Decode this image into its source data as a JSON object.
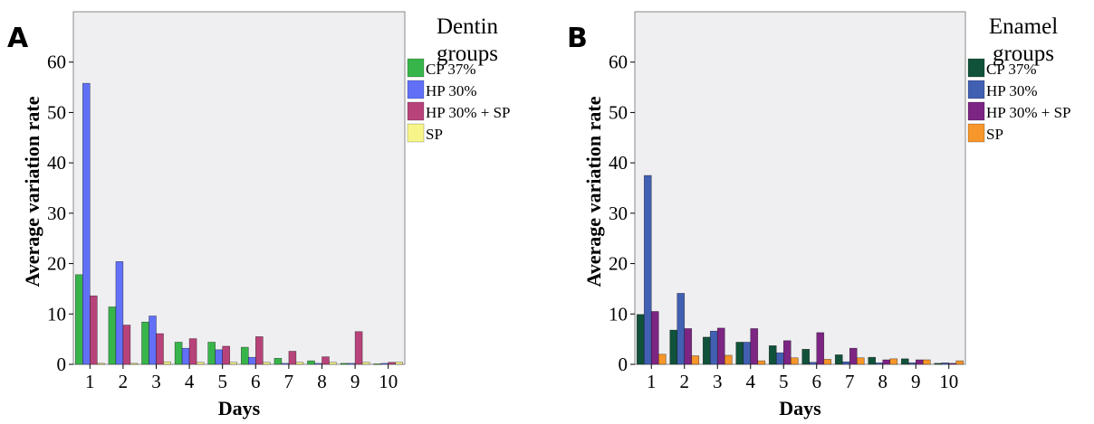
{
  "chart_data": [
    {
      "panel": "A",
      "type": "bar",
      "xlabel": "Days",
      "ylabel": "Average variation rate",
      "ylim": [
        0,
        70
      ],
      "yticks": [
        0,
        10,
        20,
        30,
        40,
        50,
        60
      ],
      "categories": [
        "1",
        "2",
        "3",
        "4",
        "5",
        "6",
        "7",
        "8",
        "9",
        "10"
      ],
      "legend_title": "Dentin groups",
      "legend_position": "right",
      "plot_background": "#efeff1",
      "series": [
        {
          "name": "CP 37%",
          "color": "#38b54a",
          "values": [
            17.8,
            11.4,
            8.4,
            4.4,
            4.4,
            3.4,
            1.2,
            0.7,
            0.2,
            0.1
          ]
        },
        {
          "name": "HP 30%",
          "color": "#6170f7",
          "values": [
            55.8,
            20.4,
            9.6,
            3.2,
            2.9,
            1.4,
            0.2,
            0.2,
            0.2,
            0.2
          ]
        },
        {
          "name": "HP 30% + SP",
          "color": "#b8437a",
          "values": [
            13.6,
            7.8,
            6.1,
            5.1,
            3.6,
            5.5,
            2.6,
            1.5,
            6.5,
            0.4
          ]
        },
        {
          "name": "SP",
          "color": "#f7f58a",
          "values": [
            0.2,
            0.2,
            0.5,
            0.4,
            0.4,
            0.4,
            0.4,
            0.4,
            0.4,
            0.4
          ]
        }
      ]
    },
    {
      "panel": "B",
      "type": "bar",
      "xlabel": "Days",
      "ylabel": "Average variation rate",
      "ylim": [
        0,
        70
      ],
      "yticks": [
        0,
        10,
        20,
        30,
        40,
        50,
        60
      ],
      "categories": [
        "1",
        "2",
        "3",
        "4",
        "5",
        "6",
        "7",
        "8",
        "9",
        "10"
      ],
      "legend_title": "Enamel groups",
      "legend_position": "right",
      "plot_background": "#efeff1",
      "series": [
        {
          "name": "CP 37%",
          "color": "#11523a",
          "values": [
            9.9,
            6.8,
            5.4,
            4.4,
            3.7,
            3.0,
            1.9,
            1.4,
            1.1,
            0.2
          ]
        },
        {
          "name": "HP 30%",
          "color": "#4260b2",
          "values": [
            37.5,
            14.1,
            6.6,
            4.4,
            2.3,
            0.4,
            0.5,
            0.3,
            0.3,
            0.3
          ]
        },
        {
          "name": "HP 30% + SP",
          "color": "#7c2583",
          "values": [
            10.5,
            7.1,
            7.2,
            7.1,
            4.7,
            6.3,
            3.2,
            0.9,
            0.9,
            0.2
          ]
        },
        {
          "name": "SP",
          "color": "#f7962a",
          "values": [
            2.0,
            1.7,
            1.8,
            0.7,
            1.3,
            1.0,
            1.3,
            1.1,
            0.9,
            0.7
          ]
        }
      ]
    }
  ]
}
